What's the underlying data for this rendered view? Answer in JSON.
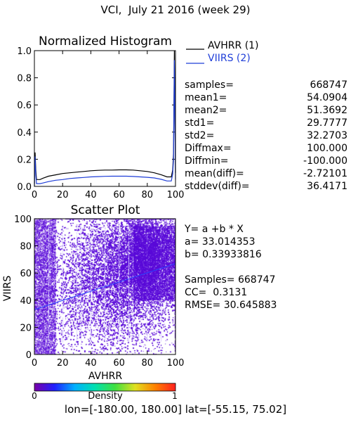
{
  "title": "VCI,  July 21 2016 (week 29)",
  "colors": {
    "avhrr": "#000000",
    "viirs": "#1f3ed8",
    "scatter_fill": "#5a0bd8",
    "fit_line": "#2a44ff",
    "colorbar_stops": [
      "#7a00a8",
      "#2020ff",
      "#00b0ff",
      "#00e0b0",
      "#40e040",
      "#e0e020",
      "#ff8000",
      "#ff2020"
    ]
  },
  "chart_data": [
    {
      "type": "line",
      "title": "Normalized Histogram",
      "xlim": [
        0,
        100
      ],
      "ylim": [
        0,
        1.0
      ],
      "xticks": [
        0,
        20,
        40,
        60,
        80,
        100
      ],
      "yticks": [
        0.0,
        0.2,
        0.4,
        0.6,
        0.8,
        1.0
      ],
      "ytick_labels": [
        "0.0",
        "0.2",
        "0.4",
        "0.6",
        "0.8",
        "1.0"
      ],
      "series": [
        {
          "name": "AVHRR (1)",
          "x": [
            0,
            0.5,
            1,
            1.5,
            2,
            3,
            4,
            6,
            10,
            15,
            20,
            25,
            30,
            35,
            40,
            45,
            50,
            55,
            60,
            65,
            70,
            75,
            80,
            85,
            90,
            94,
            96,
            97,
            98,
            98.6,
            99.2,
            100
          ],
          "y": [
            0.02,
            0.25,
            0.12,
            0.05,
            0.05,
            0.05,
            0.05,
            0.06,
            0.075,
            0.085,
            0.095,
            0.1,
            0.105,
            0.11,
            0.115,
            0.118,
            0.12,
            0.12,
            0.122,
            0.122,
            0.12,
            0.115,
            0.11,
            0.1,
            0.085,
            0.07,
            0.07,
            0.07,
            0.12,
            0.25,
            1.0,
            0.1
          ]
        },
        {
          "name": "VIIRS (2)",
          "x": [
            0,
            0.5,
            1,
            1.5,
            2,
            3,
            4,
            6,
            10,
            15,
            20,
            25,
            30,
            35,
            40,
            45,
            50,
            55,
            60,
            65,
            70,
            75,
            80,
            85,
            90,
            94,
            96,
            97,
            98,
            98.6,
            99.2,
            100
          ],
          "y": [
            0.0,
            0.22,
            0.08,
            0.02,
            0.02,
            0.02,
            0.02,
            0.025,
            0.035,
            0.045,
            0.05,
            0.058,
            0.062,
            0.066,
            0.07,
            0.072,
            0.074,
            0.075,
            0.075,
            0.075,
            0.073,
            0.07,
            0.067,
            0.062,
            0.052,
            0.04,
            0.04,
            0.04,
            0.09,
            0.2,
            0.93,
            0.05
          ]
        }
      ],
      "legend_position": "right",
      "stats": [
        {
          "label": "samples=",
          "value": "668747"
        },
        {
          "label": "mean1=",
          "value": "54.0904"
        },
        {
          "label": "mean2=",
          "value": "51.3692"
        },
        {
          "label": "std1=",
          "value": "29.7777"
        },
        {
          "label": "std2=",
          "value": "32.2703"
        },
        {
          "label": "Diffmax=",
          "value": "100.000"
        },
        {
          "label": "Diffmin=",
          "value": "-100.000"
        },
        {
          "label": "mean(diff)=",
          "value": "-2.72101"
        },
        {
          "label": "stddev(diff)=",
          "value": "36.4171"
        }
      ]
    },
    {
      "type": "scatter",
      "title": "Scatter Plot",
      "xlabel": "AVHRR",
      "ylabel": "VIIRS",
      "xlim": [
        0,
        100
      ],
      "ylim": [
        0,
        100
      ],
      "xticks": [
        0,
        20,
        40,
        60,
        80,
        100
      ],
      "yticks": [
        0,
        20,
        40,
        60,
        80,
        100
      ],
      "samples": 668747,
      "fit": {
        "equation": "Y= a +b * X",
        "a": "33.014353",
        "b": "0.33933816",
        "x_range": [
          0,
          100
        ]
      },
      "summary": {
        "samples": "668747",
        "cc": "0.3131",
        "rmse": "30.645883"
      },
      "colorbar": {
        "label": "Density",
        "min_label": "0",
        "max_label": "1"
      }
    }
  ],
  "footer": {
    "lon_label": "lon=",
    "lon_range": "[-180.00, 180.00]",
    "lat_label": "lat=",
    "lat_range": "[-55.15, 75.02]"
  }
}
